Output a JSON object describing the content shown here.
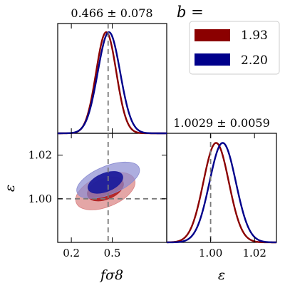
{
  "chart_data": {
    "type": "corner-plot",
    "parameters": [
      "fσ8",
      "ε"
    ],
    "reference_values": {
      "fsigma8": 0.47,
      "epsilon": 1.0
    },
    "legend": {
      "title": "b =",
      "placement": "top-right",
      "entries": [
        {
          "name": "1.93",
          "color": "#8b0000"
        },
        {
          "name": "2.20",
          "color": "#00008b"
        }
      ]
    },
    "panels": {
      "fsigma8_marginal": {
        "title": "0.466 ± 0.078",
        "xlim": [
          0.1,
          0.9
        ],
        "series": [
          {
            "name": "1.93",
            "mean": 0.456,
            "sigma": 0.074
          },
          {
            "name": "2.20",
            "mean": 0.476,
            "sigma": 0.082
          }
        ]
      },
      "epsilon_marginal": {
        "title": "1.0029 ± 0.0059",
        "xlim": [
          0.98,
          1.03
        ],
        "xticks": [
          "1.00",
          "1.02"
        ],
        "xlabel": "ε",
        "series": [
          {
            "name": "1.93",
            "mean": 1.0025,
            "sigma": 0.0058
          },
          {
            "name": "2.20",
            "mean": 1.0055,
            "sigma": 0.006
          }
        ]
      },
      "joint": {
        "xlim": [
          0.1,
          0.9
        ],
        "ylim": [
          0.98,
          1.03
        ],
        "xticks": [
          "0.2",
          "0.5"
        ],
        "yticks": [
          "1.00",
          "1.02"
        ],
        "xlabel": "fσ8",
        "ylabel": "ε",
        "contours": [
          {
            "series": "1.93",
            "level": "2σ",
            "cx": 0.45,
            "cy": 1.0035,
            "rx": 0.23,
            "ry": 0.0072,
            "color": "#d98080"
          },
          {
            "series": "1.93",
            "level": "1σ",
            "cx": 0.45,
            "cy": 1.0045,
            "rx": 0.14,
            "ry": 0.0048,
            "color": "#b22222"
          },
          {
            "series": "2.20",
            "level": "2σ",
            "cx": 0.47,
            "cy": 1.0085,
            "rx": 0.245,
            "ry": 0.0065,
            "color": "#8a8cd1"
          },
          {
            "series": "2.20",
            "level": "1σ",
            "cx": 0.45,
            "cy": 1.0075,
            "rx": 0.135,
            "ry": 0.0042,
            "color": "#1c1c9c"
          }
        ]
      }
    }
  }
}
